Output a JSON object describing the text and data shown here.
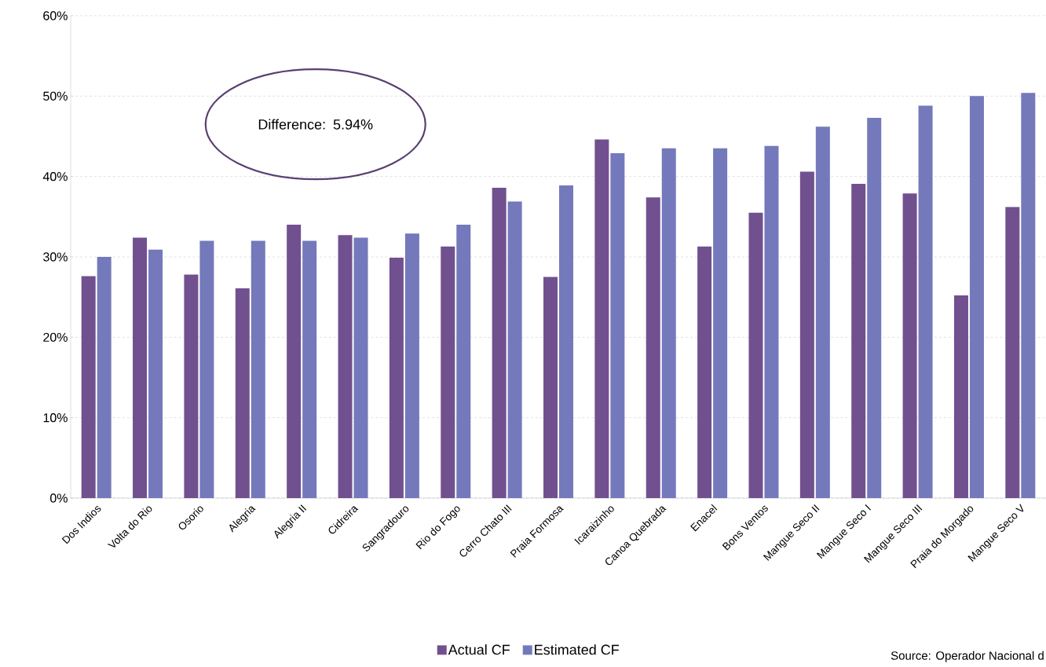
{
  "chart_data": {
    "type": "bar",
    "categories": [
      "Dos Indios",
      "Volta  do Rio",
      "Osorio",
      "Alegria",
      "Alegria II",
      "Cidreira",
      "Sangradouro",
      "Rio do Fogo",
      "Cerro Chato III",
      "Praia Formosa",
      "Icaraizinho",
      "Canoa Quebrada",
      "Enacel",
      "Bons Ventos",
      "Mangue Seco II",
      "Mangue Seco I",
      "Mangue Seco III",
      "Praia do Morgado",
      "Mangue Seco V"
    ],
    "series": [
      {
        "name": "Actual CF",
        "color": "#71508f",
        "values": [
          27.6,
          32.4,
          27.8,
          26.1,
          34.0,
          32.7,
          29.9,
          31.3,
          38.6,
          27.5,
          44.6,
          37.4,
          31.3,
          35.5,
          40.6,
          39.1,
          37.9,
          25.2,
          36.2
        ]
      },
      {
        "name": "Estimated CF",
        "color": "#7479bb",
        "values": [
          30.0,
          30.9,
          32.0,
          32.0,
          32.0,
          32.4,
          32.9,
          34.0,
          36.9,
          38.9,
          42.9,
          43.5,
          43.5,
          43.8,
          46.2,
          47.3,
          48.8,
          50.0,
          50.4
        ]
      }
    ],
    "ylim": [
      0,
      60
    ],
    "yticks": [
      {
        "value": 0,
        "label": "0%"
      },
      {
        "value": 10,
        "label": "10%"
      },
      {
        "value": 20,
        "label": "20%"
      },
      {
        "value": 30,
        "label": "30%"
      },
      {
        "value": 40,
        "label": "40%"
      },
      {
        "value": 50,
        "label": "50%"
      },
      {
        "value": 60,
        "label": "60%"
      }
    ],
    "grid": "y",
    "legend": "bottom",
    "annotations": [
      "Difference: 5.94%",
      "Source: Operador Nacional d"
    ]
  }
}
